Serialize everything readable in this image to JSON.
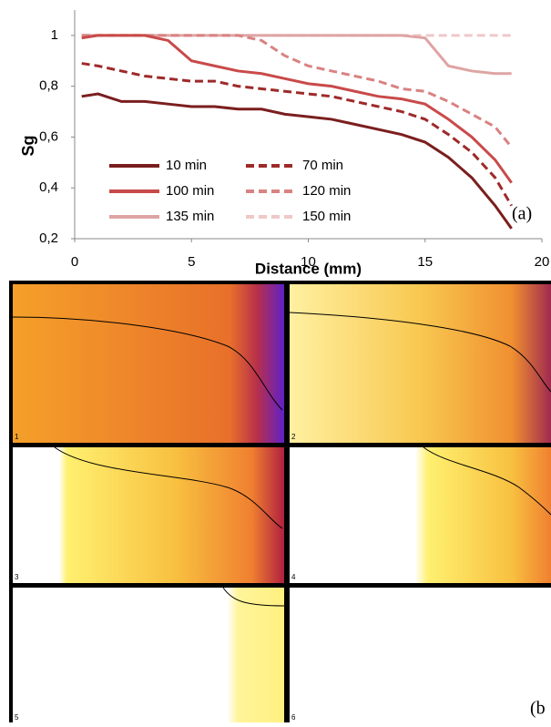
{
  "chart_data": {
    "type": "line",
    "y_label": "Sg",
    "x_label": "Distance (mm)",
    "annotation": "(a)",
    "x": [
      0.3,
      1,
      2,
      3,
      4,
      5,
      6,
      7,
      8,
      9,
      10,
      11,
      12,
      13,
      14,
      15,
      16,
      17,
      18,
      18.7
    ],
    "series": [
      {
        "name": "10 min",
        "color": "#7b1e1e",
        "linestyle": "solid",
        "values": [
          0.76,
          0.77,
          0.74,
          0.74,
          0.73,
          0.72,
          0.72,
          0.71,
          0.71,
          0.69,
          0.68,
          0.67,
          0.65,
          0.63,
          0.61,
          0.58,
          0.52,
          0.44,
          0.33,
          0.24
        ]
      },
      {
        "name": "70 min",
        "color": "#9e2a2a",
        "linestyle": "dashed",
        "values": [
          0.89,
          0.88,
          0.86,
          0.84,
          0.83,
          0.82,
          0.82,
          0.8,
          0.79,
          0.78,
          0.77,
          0.76,
          0.74,
          0.72,
          0.7,
          0.67,
          0.61,
          0.54,
          0.44,
          0.33
        ]
      },
      {
        "name": "100 min",
        "color": "#c94a4a",
        "linestyle": "solid",
        "values": [
          0.99,
          1,
          1,
          1,
          0.98,
          0.9,
          0.88,
          0.86,
          0.85,
          0.83,
          0.81,
          0.8,
          0.78,
          0.76,
          0.75,
          0.73,
          0.67,
          0.6,
          0.51,
          0.42
        ]
      },
      {
        "name": "120 min",
        "color": "#d98282",
        "linestyle": "dashed",
        "values": [
          1,
          1,
          1,
          1,
          1,
          1,
          1,
          1,
          0.98,
          0.92,
          0.88,
          0.86,
          0.84,
          0.82,
          0.79,
          0.78,
          0.74,
          0.69,
          0.64,
          0.56
        ]
      },
      {
        "name": "135 min",
        "color": "#dea4a4",
        "linestyle": "solid",
        "values": [
          1,
          1,
          1,
          1,
          1,
          1,
          1,
          1,
          1,
          1,
          1,
          1,
          1,
          1,
          1,
          0.99,
          0.88,
          0.86,
          0.85,
          0.85
        ]
      },
      {
        "name": "150 min",
        "color": "#efc8c8",
        "linestyle": "dashed",
        "values": [
          1,
          1,
          1,
          1,
          1,
          1,
          1,
          1,
          1,
          1,
          1,
          1,
          1,
          1,
          1,
          1,
          1,
          1,
          1,
          1
        ]
      }
    ],
    "xlim": [
      0,
      20
    ],
    "xticks": [
      0,
      5,
      10,
      15,
      20
    ],
    "ylim": [
      0.2,
      1.1
    ],
    "yticks": [
      {
        "value": 0.2,
        "label": "0,2"
      },
      {
        "value": 0.4,
        "label": "0,4"
      },
      {
        "value": 0.6,
        "label": "0,6"
      },
      {
        "value": 0.8,
        "label": "0,8"
      },
      1
    ],
    "legend": "lower left"
  },
  "panels": {
    "labels": [
      "1",
      "2",
      "3",
      "4",
      "5",
      "6"
    ],
    "caption": "(b"
  }
}
